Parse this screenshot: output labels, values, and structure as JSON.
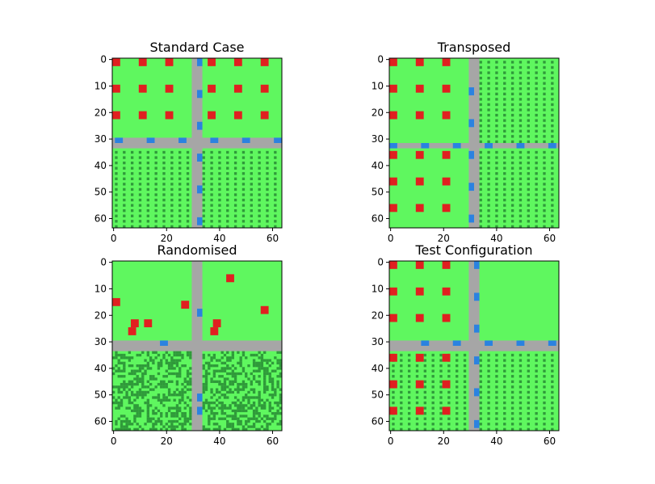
{
  "colors": {
    "grass": "#5ff75f",
    "road": "#a6a6a6",
    "car": "#2b82e0",
    "house": "#e02020",
    "crop": "#2f9a3a"
  },
  "chart_data": [
    {
      "type": "heatmap",
      "title": "Standard Case",
      "grid_size": 64,
      "xlim": [
        0,
        63
      ],
      "ylim": [
        63,
        0
      ],
      "xticks": [
        0,
        20,
        40,
        60
      ],
      "yticks": [
        0,
        10,
        20,
        30,
        40,
        50,
        60
      ],
      "field_pattern": "dotted",
      "roads": {
        "vertical_x": [
          30,
          33
        ],
        "horizontal_y": [
          30,
          33
        ]
      },
      "fields": [
        {
          "x": [
            0,
            29
          ],
          "y": [
            34,
            63
          ]
        },
        {
          "x": [
            34,
            63
          ],
          "y": [
            34,
            63
          ]
        }
      ],
      "houses": [
        [
          0,
          0
        ],
        [
          10,
          0
        ],
        [
          20,
          0
        ],
        [
          36,
          0
        ],
        [
          46,
          0
        ],
        [
          56,
          0
        ],
        [
          0,
          10
        ],
        [
          10,
          10
        ],
        [
          20,
          10
        ],
        [
          36,
          10
        ],
        [
          46,
          10
        ],
        [
          56,
          10
        ],
        [
          0,
          20
        ],
        [
          10,
          20
        ],
        [
          20,
          20
        ],
        [
          36,
          20
        ],
        [
          46,
          20
        ],
        [
          56,
          20
        ]
      ],
      "cars_horizontal": [
        [
          1,
          30
        ],
        [
          13,
          30
        ],
        [
          25,
          30
        ],
        [
          37,
          30
        ],
        [
          49,
          30
        ],
        [
          61,
          30
        ]
      ],
      "cars_vertical": [
        [
          32,
          0
        ],
        [
          32,
          12
        ],
        [
          32,
          24
        ],
        [
          32,
          36
        ],
        [
          32,
          48
        ],
        [
          32,
          60
        ]
      ]
    },
    {
      "type": "heatmap",
      "title": "Transposed",
      "grid_size": 64,
      "xlim": [
        0,
        63
      ],
      "ylim": [
        63,
        0
      ],
      "xticks": [
        0,
        20,
        40,
        60
      ],
      "yticks": [
        0,
        10,
        20,
        30,
        40,
        50,
        60
      ],
      "field_pattern": "dotted",
      "roads": {
        "vertical_x": [
          30,
          33
        ],
        "horizontal_y": [
          32,
          33
        ]
      },
      "fields": [
        {
          "x": [
            34,
            63
          ],
          "y": [
            0,
            31
          ]
        },
        {
          "x": [
            34,
            63
          ],
          "y": [
            34,
            63
          ]
        }
      ],
      "houses": [
        [
          0,
          0
        ],
        [
          10,
          0
        ],
        [
          20,
          0
        ],
        [
          0,
          10
        ],
        [
          10,
          10
        ],
        [
          20,
          10
        ],
        [
          0,
          20
        ],
        [
          10,
          20
        ],
        [
          20,
          20
        ],
        [
          0,
          35
        ],
        [
          10,
          35
        ],
        [
          20,
          35
        ],
        [
          0,
          45
        ],
        [
          10,
          45
        ],
        [
          20,
          45
        ],
        [
          0,
          55
        ],
        [
          10,
          55
        ],
        [
          20,
          55
        ]
      ],
      "cars_horizontal": [
        [
          0,
          32
        ],
        [
          12,
          32
        ],
        [
          24,
          32
        ],
        [
          36,
          32
        ],
        [
          48,
          32
        ],
        [
          60,
          32
        ]
      ],
      "cars_vertical": [
        [
          30,
          11
        ],
        [
          30,
          23
        ],
        [
          30,
          35
        ],
        [
          30,
          47
        ],
        [
          30,
          59
        ]
      ]
    },
    {
      "type": "heatmap",
      "title": "Randomised",
      "grid_size": 64,
      "xlim": [
        0,
        63
      ],
      "ylim": [
        63,
        0
      ],
      "xticks": [
        0,
        20,
        40,
        60
      ],
      "yticks": [
        0,
        10,
        20,
        30,
        40,
        50,
        60
      ],
      "field_pattern": "random",
      "roads": {
        "vertical_x": [
          30,
          33
        ],
        "horizontal_y": [
          30,
          33
        ]
      },
      "fields": [
        {
          "x": [
            0,
            29
          ],
          "y": [
            34,
            63
          ]
        },
        {
          "x": [
            34,
            63
          ],
          "y": [
            34,
            63
          ]
        }
      ],
      "houses": [
        [
          0,
          14
        ],
        [
          7,
          22
        ],
        [
          12,
          22
        ],
        [
          6,
          25
        ],
        [
          26,
          15
        ],
        [
          43,
          5
        ],
        [
          38,
          22
        ],
        [
          37,
          25
        ],
        [
          56,
          17
        ]
      ],
      "cars_horizontal": [
        [
          18,
          30
        ]
      ],
      "cars_vertical": [
        [
          32,
          18
        ],
        [
          32,
          50
        ],
        [
          32,
          55
        ]
      ]
    },
    {
      "type": "heatmap",
      "title": "Test Configuration",
      "grid_size": 64,
      "xlim": [
        0,
        63
      ],
      "ylim": [
        63,
        0
      ],
      "xticks": [
        0,
        20,
        40,
        60
      ],
      "yticks": [
        0,
        10,
        20,
        30,
        40,
        50,
        60
      ],
      "field_pattern": "dotted",
      "roads": {
        "vertical_x": [
          30,
          33
        ],
        "horizontal_y": [
          30,
          33
        ]
      },
      "fields": [
        {
          "x": [
            0,
            29
          ],
          "y": [
            34,
            63
          ]
        },
        {
          "x": [
            34,
            63
          ],
          "y": [
            34,
            63
          ]
        }
      ],
      "houses": [
        [
          0,
          0
        ],
        [
          10,
          0
        ],
        [
          20,
          0
        ],
        [
          0,
          10
        ],
        [
          10,
          10
        ],
        [
          20,
          10
        ],
        [
          0,
          20
        ],
        [
          10,
          20
        ],
        [
          20,
          20
        ],
        [
          0,
          35
        ],
        [
          10,
          35
        ],
        [
          20,
          35
        ],
        [
          0,
          45
        ],
        [
          10,
          45
        ],
        [
          20,
          45
        ],
        [
          0,
          55
        ],
        [
          10,
          55
        ],
        [
          20,
          55
        ]
      ],
      "cars_horizontal": [
        [
          12,
          30
        ],
        [
          24,
          30
        ],
        [
          36,
          30
        ],
        [
          48,
          30
        ],
        [
          60,
          30
        ]
      ],
      "cars_vertical": [
        [
          32,
          0
        ],
        [
          32,
          12
        ],
        [
          32,
          24
        ],
        [
          32,
          36
        ],
        [
          32,
          48
        ],
        [
          32,
          60
        ]
      ]
    }
  ]
}
